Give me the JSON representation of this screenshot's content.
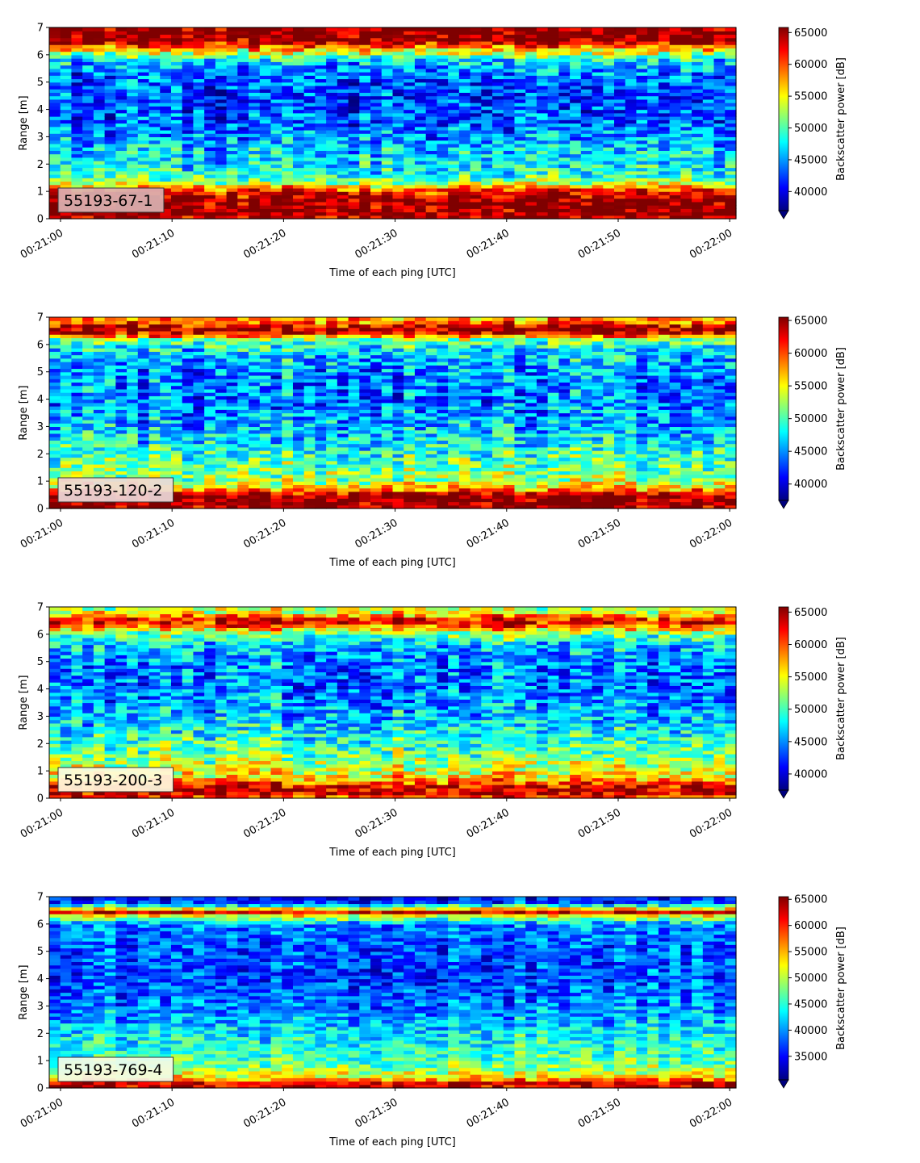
{
  "colormap": [
    "#00007f",
    "#0000ff",
    "#007fff",
    "#00ffff",
    "#7fff7f",
    "#ffff00",
    "#ff7f00",
    "#ff0000",
    "#7f0000"
  ],
  "chart_data": [
    {
      "type": "heatmap",
      "station": "55193-67-1",
      "xlabel": "Time of each ping [UTC]",
      "ylabel": "Range [m]",
      "colorbar_label": "Backscatter power [dB]",
      "x_ticks": [
        "00:21:00",
        "00:21:10",
        "00:21:20",
        "00:21:30",
        "00:21:40",
        "00:21:50",
        "00:22:00"
      ],
      "y_ticks": [
        "0",
        "1",
        "2",
        "3",
        "4",
        "5",
        "6",
        "7"
      ],
      "ylim": [
        0,
        7
      ],
      "colorbar_ticks": [
        "40000",
        "45000",
        "50000",
        "55000",
        "60000",
        "65000"
      ],
      "clim": [
        37000,
        65800
      ],
      "colorbar_extend": "min",
      "label_box_color": "#dbb2b2",
      "profile": [
        [
          0.0,
          64000
        ],
        [
          0.2,
          65500
        ],
        [
          0.7,
          65500
        ],
        [
          1.1,
          60000
        ],
        [
          1.3,
          53000
        ],
        [
          1.6,
          48500
        ],
        [
          2.5,
          46500
        ],
        [
          3.3,
          43500
        ],
        [
          4.3,
          42000
        ],
        [
          5.3,
          43500
        ],
        [
          5.8,
          47000
        ],
        [
          6.1,
          54000
        ],
        [
          6.35,
          60000
        ],
        [
          6.5,
          65500
        ],
        [
          7.0,
          65500
        ]
      ]
    },
    {
      "type": "heatmap",
      "station": "55193-120-2",
      "xlabel": "Time of each ping [UTC]",
      "ylabel": "Range [m]",
      "colorbar_label": "Backscatter power [dB]",
      "x_ticks": [
        "00:21:00",
        "00:21:10",
        "00:21:20",
        "00:21:30",
        "00:21:40",
        "00:21:50",
        "00:22:00"
      ],
      "y_ticks": [
        "0",
        "1",
        "2",
        "3",
        "4",
        "5",
        "6",
        "7"
      ],
      "ylim": [
        0,
        7
      ],
      "colorbar_ticks": [
        "40000",
        "45000",
        "50000",
        "55000",
        "60000",
        "65000"
      ],
      "clim": [
        37500,
        65500
      ],
      "colorbar_extend": "min",
      "label_box_color": "#eed9d9",
      "profile": [
        [
          0.0,
          65000
        ],
        [
          0.1,
          65500
        ],
        [
          0.5,
          65500
        ],
        [
          0.7,
          58000
        ],
        [
          1.0,
          53000
        ],
        [
          2.0,
          49500
        ],
        [
          3.0,
          46000
        ],
        [
          4.0,
          44500
        ],
        [
          5.0,
          45000
        ],
        [
          5.8,
          47500
        ],
        [
          6.2,
          52000
        ],
        [
          6.4,
          63000
        ],
        [
          6.6,
          65000
        ],
        [
          6.8,
          60000
        ],
        [
          7.0,
          57000
        ]
      ]
    },
    {
      "type": "heatmap",
      "station": "55193-200-3",
      "xlabel": "Time of each ping [UTC]",
      "ylabel": "Range [m]",
      "colorbar_label": "Backscatter power [dB]",
      "x_ticks": [
        "00:21:00",
        "00:21:10",
        "00:21:20",
        "00:21:30",
        "00:21:40",
        "00:21:50",
        "00:22:00"
      ],
      "y_ticks": [
        "0",
        "1",
        "2",
        "3",
        "4",
        "5",
        "6",
        "7"
      ],
      "ylim": [
        0,
        7
      ],
      "colorbar_ticks": [
        "40000",
        "45000",
        "50000",
        "55000",
        "60000",
        "65000"
      ],
      "clim": [
        37500,
        65800
      ],
      "colorbar_extend": "min",
      "label_box_color": "#fffbe0",
      "profile": [
        [
          0.0,
          60000
        ],
        [
          0.2,
          64000
        ],
        [
          0.45,
          63000
        ],
        [
          0.8,
          56000
        ],
        [
          1.3,
          53000
        ],
        [
          2.0,
          50000
        ],
        [
          3.0,
          46500
        ],
        [
          4.0,
          44500
        ],
        [
          5.0,
          45000
        ],
        [
          5.7,
          47500
        ],
        [
          6.1,
          53000
        ],
        [
          6.4,
          63000
        ],
        [
          6.55,
          62000
        ],
        [
          6.8,
          55000
        ],
        [
          7.0,
          53000
        ]
      ]
    },
    {
      "type": "heatmap",
      "station": "55193-769-4",
      "xlabel": "Time of each ping [UTC]",
      "ylabel": "Range [m]",
      "colorbar_label": "Backscatter power [dB]",
      "x_ticks": [
        "00:21:00",
        "00:21:10",
        "00:21:20",
        "00:21:30",
        "00:21:40",
        "00:21:50",
        "00:22:00"
      ],
      "y_ticks": [
        "0",
        "1",
        "2",
        "3",
        "4",
        "5",
        "6",
        "7"
      ],
      "ylim": [
        0,
        7
      ],
      "colorbar_ticks": [
        "35000",
        "40000",
        "45000",
        "50000",
        "55000",
        "60000",
        "65000"
      ],
      "clim": [
        30500,
        65500
      ],
      "colorbar_extend": "min",
      "label_box_color": "#f4fbe8",
      "profile": [
        [
          0.0,
          62000
        ],
        [
          0.15,
          64500
        ],
        [
          0.35,
          55000
        ],
        [
          0.7,
          49000
        ],
        [
          1.2,
          46000
        ],
        [
          2.0,
          43500
        ],
        [
          3.0,
          39500
        ],
        [
          4.0,
          37500
        ],
        [
          5.0,
          38000
        ],
        [
          6.0,
          40000
        ],
        [
          6.3,
          52000
        ],
        [
          6.45,
          63000
        ],
        [
          6.6,
          50000
        ],
        [
          6.8,
          37000
        ],
        [
          7.0,
          36000
        ]
      ]
    }
  ]
}
